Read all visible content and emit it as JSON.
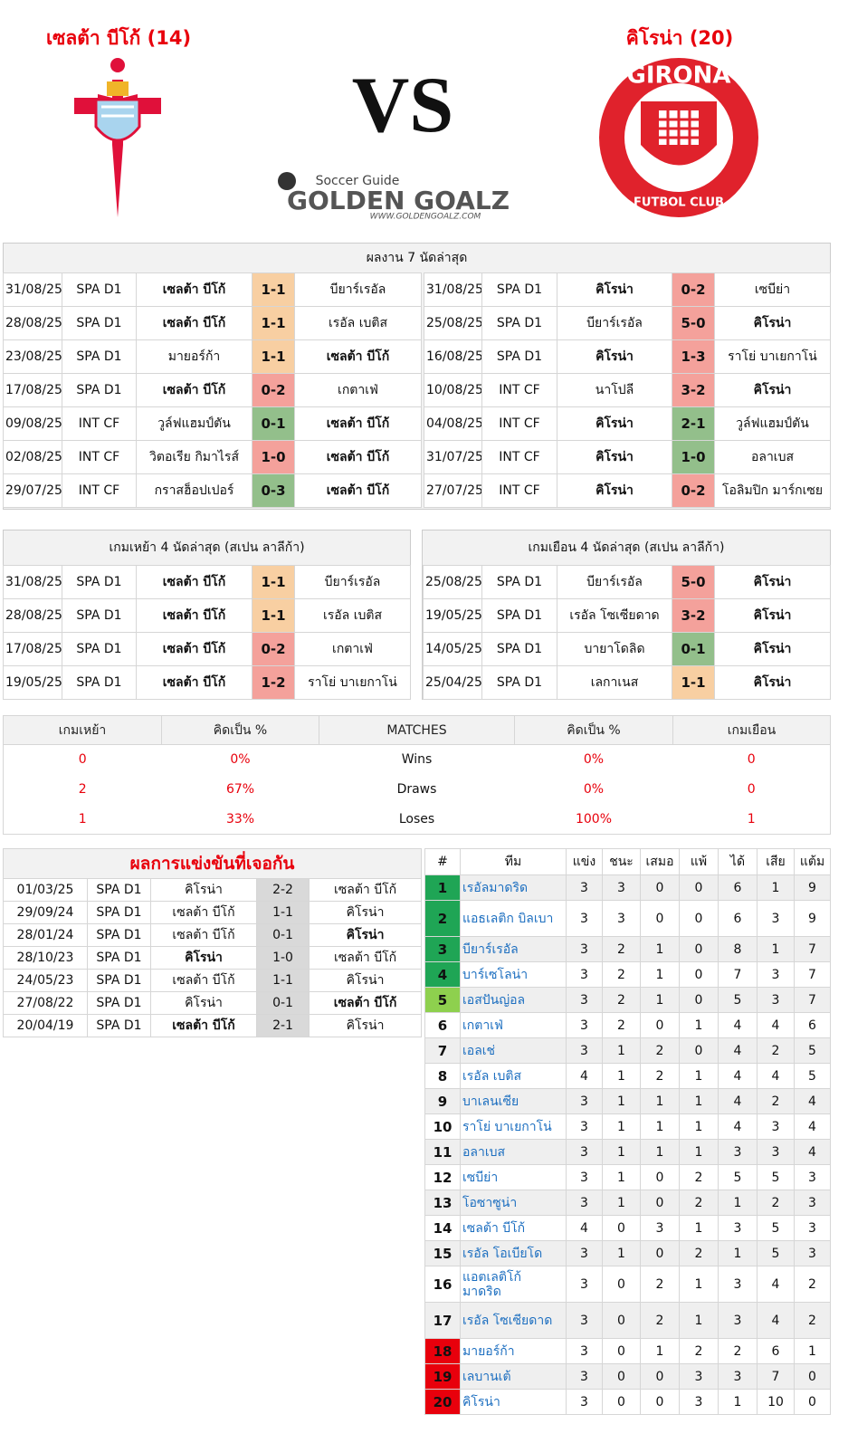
{
  "header": {
    "home": {
      "name": "เซลต้า บีโก้",
      "rank": "(14)"
    },
    "away": {
      "name": "คิโรน่า",
      "rank": "(20)"
    },
    "vs": "VS",
    "brand": {
      "tag": "Soccer Guide",
      "name": "GOLDEN GOALZ",
      "url": "WWW.GOLDENGOALZ.COM"
    },
    "away_logo": {
      "top": "GIRONA",
      "bottom": "FUTBOL CLUB"
    }
  },
  "recent": {
    "title": "ผลงาน 7 นัดล่าสุด",
    "home": [
      {
        "date": "31/08/25",
        "league": "SPA D1",
        "home": "เซลต้า บีโก้",
        "score": "1-1",
        "away": "บียาร์เรอัล",
        "color": "#f8cfa2"
      },
      {
        "date": "28/08/25",
        "league": "SPA D1",
        "home": "เซลต้า บีโก้",
        "score": "1-1",
        "away": "เรอัล เบติส",
        "color": "#f8cfa2"
      },
      {
        "date": "23/08/25",
        "league": "SPA D1",
        "home": "มายอร์ก้า",
        "score": "1-1",
        "away": "เซลต้า บีโก้",
        "color": "#f8cfa2"
      },
      {
        "date": "17/08/25",
        "league": "SPA D1",
        "home": "เซลต้า บีโก้",
        "score": "0-2",
        "away": "เกตาเฟ่",
        "color": "#f4a19b"
      },
      {
        "date": "09/08/25",
        "league": "INT CF",
        "home": "วูล์ฟแฮมป์ตัน",
        "score": "0-1",
        "away": "เซลต้า บีโก้",
        "color": "#93bf8b"
      },
      {
        "date": "02/08/25",
        "league": "INT CF",
        "home": "วิตอเรีย กิมาไรส์",
        "score": "1-0",
        "away": "เซลต้า บีโก้",
        "color": "#f4a19b"
      },
      {
        "date": "29/07/25",
        "league": "INT CF",
        "home": "กราสฮ็อปเปอร์",
        "score": "0-3",
        "away": "เซลต้า บีโก้",
        "color": "#93bf8b"
      }
    ],
    "away": [
      {
        "date": "31/08/25",
        "league": "SPA D1",
        "home": "คิโรน่า",
        "score": "0-2",
        "away": "เซบีย่า",
        "color": "#f4a19b"
      },
      {
        "date": "25/08/25",
        "league": "SPA D1",
        "home": "บียาร์เรอัล",
        "score": "5-0",
        "away": "คิโรน่า",
        "color": "#f4a19b"
      },
      {
        "date": "16/08/25",
        "league": "SPA D1",
        "home": "คิโรน่า",
        "score": "1-3",
        "away": "ราโย่ บาเยกาโน่",
        "color": "#f4a19b"
      },
      {
        "date": "10/08/25",
        "league": "INT CF",
        "home": "นาโปลี",
        "score": "3-2",
        "away": "คิโรน่า",
        "color": "#f4a19b"
      },
      {
        "date": "04/08/25",
        "league": "INT CF",
        "home": "คิโรน่า",
        "score": "2-1",
        "away": "วูล์ฟแฮมป์ตัน",
        "color": "#93bf8b"
      },
      {
        "date": "31/07/25",
        "league": "INT CF",
        "home": "คิโรน่า",
        "score": "1-0",
        "away": "อลาเบส",
        "color": "#93bf8b"
      },
      {
        "date": "27/07/25",
        "league": "INT CF",
        "home": "คิโรน่า",
        "score": "0-2",
        "away": "โอลิมปิก มาร์กเซย",
        "color": "#f4a19b"
      }
    ]
  },
  "last4": {
    "home_title": "เกมเหย้า 4 นัดล่าสุด (สเปน ลาลีก้า)",
    "away_title": "เกมเยือน 4 นัดล่าสุด (สเปน ลาลีก้า)",
    "home": [
      {
        "date": "31/08/25",
        "league": "SPA D1",
        "home": "เซลต้า บีโก้",
        "score": "1-1",
        "away": "บียาร์เรอัล",
        "color": "#f8cfa2"
      },
      {
        "date": "28/08/25",
        "league": "SPA D1",
        "home": "เซลต้า บีโก้",
        "score": "1-1",
        "away": "เรอัล เบติส",
        "color": "#f8cfa2"
      },
      {
        "date": "17/08/25",
        "league": "SPA D1",
        "home": "เซลต้า บีโก้",
        "score": "0-2",
        "away": "เกตาเฟ่",
        "color": "#f4a19b"
      },
      {
        "date": "19/05/25",
        "league": "SPA D1",
        "home": "เซลต้า บีโก้",
        "score": "1-2",
        "away": "ราโย่ บาเยกาโน่",
        "color": "#f4a19b"
      }
    ],
    "away": [
      {
        "date": "25/08/25",
        "league": "SPA D1",
        "home": "บียาร์เรอัล",
        "score": "5-0",
        "away": "คิโรน่า",
        "color": "#f4a19b"
      },
      {
        "date": "19/05/25",
        "league": "SPA D1",
        "home": "เรอัล โซเซียดาด",
        "score": "3-2",
        "away": "คิโรน่า",
        "color": "#f4a19b"
      },
      {
        "date": "14/05/25",
        "league": "SPA D1",
        "home": "บายาโดลิด",
        "score": "0-1",
        "away": "คิโรน่า",
        "color": "#93bf8b"
      },
      {
        "date": "25/04/25",
        "league": "SPA D1",
        "home": "เลกาเนส",
        "score": "1-1",
        "away": "คิโรน่า",
        "color": "#f8cfa2"
      }
    ]
  },
  "summary": {
    "headers": [
      "เกมเหย้า",
      "คิดเป็น %",
      "MATCHES",
      "คิดเป็น %",
      "เกมเยือน"
    ],
    "rows": [
      [
        0,
        "0%",
        "Wins",
        "0%",
        0
      ],
      [
        2,
        "67%",
        "Draws",
        "0%",
        0
      ],
      [
        1,
        "33%",
        "Loses",
        "100%",
        1
      ]
    ]
  },
  "h2h": {
    "title": "ผลการแข่งขันที่เจอกัน",
    "rows": [
      {
        "date": "01/03/25",
        "league": "SPA D1",
        "home": "คิโรน่า",
        "score": "2-2",
        "away": "เซลต้า บีโก้"
      },
      {
        "date": "29/09/24",
        "league": "SPA D1",
        "home": "เซลต้า บีโก้",
        "score": "1-1",
        "away": "คิโรน่า"
      },
      {
        "date": "28/01/24",
        "league": "SPA D1",
        "home": "เซลต้า บีโก้",
        "score": "0-1",
        "away": "คิโรน่า"
      },
      {
        "date": "28/10/23",
        "league": "SPA D1",
        "home": "คิโรน่า",
        "score": "1-0",
        "away": "เซลต้า บีโก้"
      },
      {
        "date": "24/05/23",
        "league": "SPA D1",
        "home": "เซลต้า บีโก้",
        "score": "1-1",
        "away": "คิโรน่า"
      },
      {
        "date": "27/08/22",
        "league": "SPA D1",
        "home": "คิโรน่า",
        "score": "0-1",
        "away": "เซลต้า บีโก้"
      },
      {
        "date": "20/04/19",
        "league": "SPA D1",
        "home": "เซลต้า บีโก้",
        "score": "2-1",
        "away": "คิโรน่า"
      }
    ]
  },
  "standings": {
    "headers": [
      "#",
      "ทีม",
      "แข่ง",
      "ชนะ",
      "เสมอ",
      "แพ้",
      "ได้",
      "เสีย",
      "แต้ม"
    ],
    "rows": [
      {
        "pos": 1,
        "team": "เรอัลมาดริด",
        "p": 3,
        "w": 3,
        "d": 0,
        "l": 0,
        "gf": 6,
        "ga": 1,
        "pts": 9,
        "color": "#1fa555"
      },
      {
        "pos": 2,
        "team": "แอธเลติก บิลเบา",
        "p": 3,
        "w": 3,
        "d": 0,
        "l": 0,
        "gf": 6,
        "ga": 3,
        "pts": 9,
        "color": "#1fa555"
      },
      {
        "pos": 3,
        "team": "บียาร์เรอัล",
        "p": 3,
        "w": 2,
        "d": 1,
        "l": 0,
        "gf": 8,
        "ga": 1,
        "pts": 7,
        "color": "#1fa555"
      },
      {
        "pos": 4,
        "team": "บาร์เซโลน่า",
        "p": 3,
        "w": 2,
        "d": 1,
        "l": 0,
        "gf": 7,
        "ga": 3,
        "pts": 7,
        "color": "#1fa555"
      },
      {
        "pos": 5,
        "team": "เอสปันญ่อล",
        "p": 3,
        "w": 2,
        "d": 1,
        "l": 0,
        "gf": 5,
        "ga": 3,
        "pts": 7,
        "color": "#8ed04e"
      },
      {
        "pos": 6,
        "team": "เกตาเฟ่",
        "p": 3,
        "w": 2,
        "d": 0,
        "l": 1,
        "gf": 4,
        "ga": 4,
        "pts": 6
      },
      {
        "pos": 7,
        "team": "เอลเช่",
        "p": 3,
        "w": 1,
        "d": 2,
        "l": 0,
        "gf": 4,
        "ga": 2,
        "pts": 5
      },
      {
        "pos": 8,
        "team": "เรอัล เบติส",
        "p": 4,
        "w": 1,
        "d": 2,
        "l": 1,
        "gf": 4,
        "ga": 4,
        "pts": 5
      },
      {
        "pos": 9,
        "team": "บาเลนเซีย",
        "p": 3,
        "w": 1,
        "d": 1,
        "l": 1,
        "gf": 4,
        "ga": 2,
        "pts": 4
      },
      {
        "pos": 10,
        "team": "ราโย่ บาเยกาโน่",
        "p": 3,
        "w": 1,
        "d": 1,
        "l": 1,
        "gf": 4,
        "ga": 3,
        "pts": 4
      },
      {
        "pos": 11,
        "team": "อลาเบส",
        "p": 3,
        "w": 1,
        "d": 1,
        "l": 1,
        "gf": 3,
        "ga": 3,
        "pts": 4
      },
      {
        "pos": 12,
        "team": "เซบีย่า",
        "p": 3,
        "w": 1,
        "d": 0,
        "l": 2,
        "gf": 5,
        "ga": 5,
        "pts": 3
      },
      {
        "pos": 13,
        "team": "โอซาซูน่า",
        "p": 3,
        "w": 1,
        "d": 0,
        "l": 2,
        "gf": 1,
        "ga": 2,
        "pts": 3
      },
      {
        "pos": 14,
        "team": "เซลต้า บีโก้",
        "p": 4,
        "w": 0,
        "d": 3,
        "l": 1,
        "gf": 3,
        "ga": 5,
        "pts": 3
      },
      {
        "pos": 15,
        "team": "เรอัล โอเบียโด",
        "p": 3,
        "w": 1,
        "d": 0,
        "l": 2,
        "gf": 1,
        "ga": 5,
        "pts": 3
      },
      {
        "pos": 16,
        "team": "แอตเลติโก้ มาดริด",
        "p": 3,
        "w": 0,
        "d": 2,
        "l": 1,
        "gf": 3,
        "ga": 4,
        "pts": 2
      },
      {
        "pos": 17,
        "team": "เรอัล โซเซียดาด",
        "p": 3,
        "w": 0,
        "d": 2,
        "l": 1,
        "gf": 3,
        "ga": 4,
        "pts": 2
      },
      {
        "pos": 18,
        "team": "มายอร์ก้า",
        "p": 3,
        "w": 0,
        "d": 1,
        "l": 2,
        "gf": 2,
        "ga": 6,
        "pts": 1,
        "color": "#e8000c"
      },
      {
        "pos": 19,
        "team": "เลบานเต้",
        "p": 3,
        "w": 0,
        "d": 0,
        "l": 3,
        "gf": 3,
        "ga": 7,
        "pts": 0,
        "color": "#e8000c"
      },
      {
        "pos": 20,
        "team": "คิโรน่า",
        "p": 3,
        "w": 0,
        "d": 0,
        "l": 3,
        "gf": 1,
        "ga": 10,
        "pts": 0,
        "color": "#e8000c"
      }
    ]
  }
}
